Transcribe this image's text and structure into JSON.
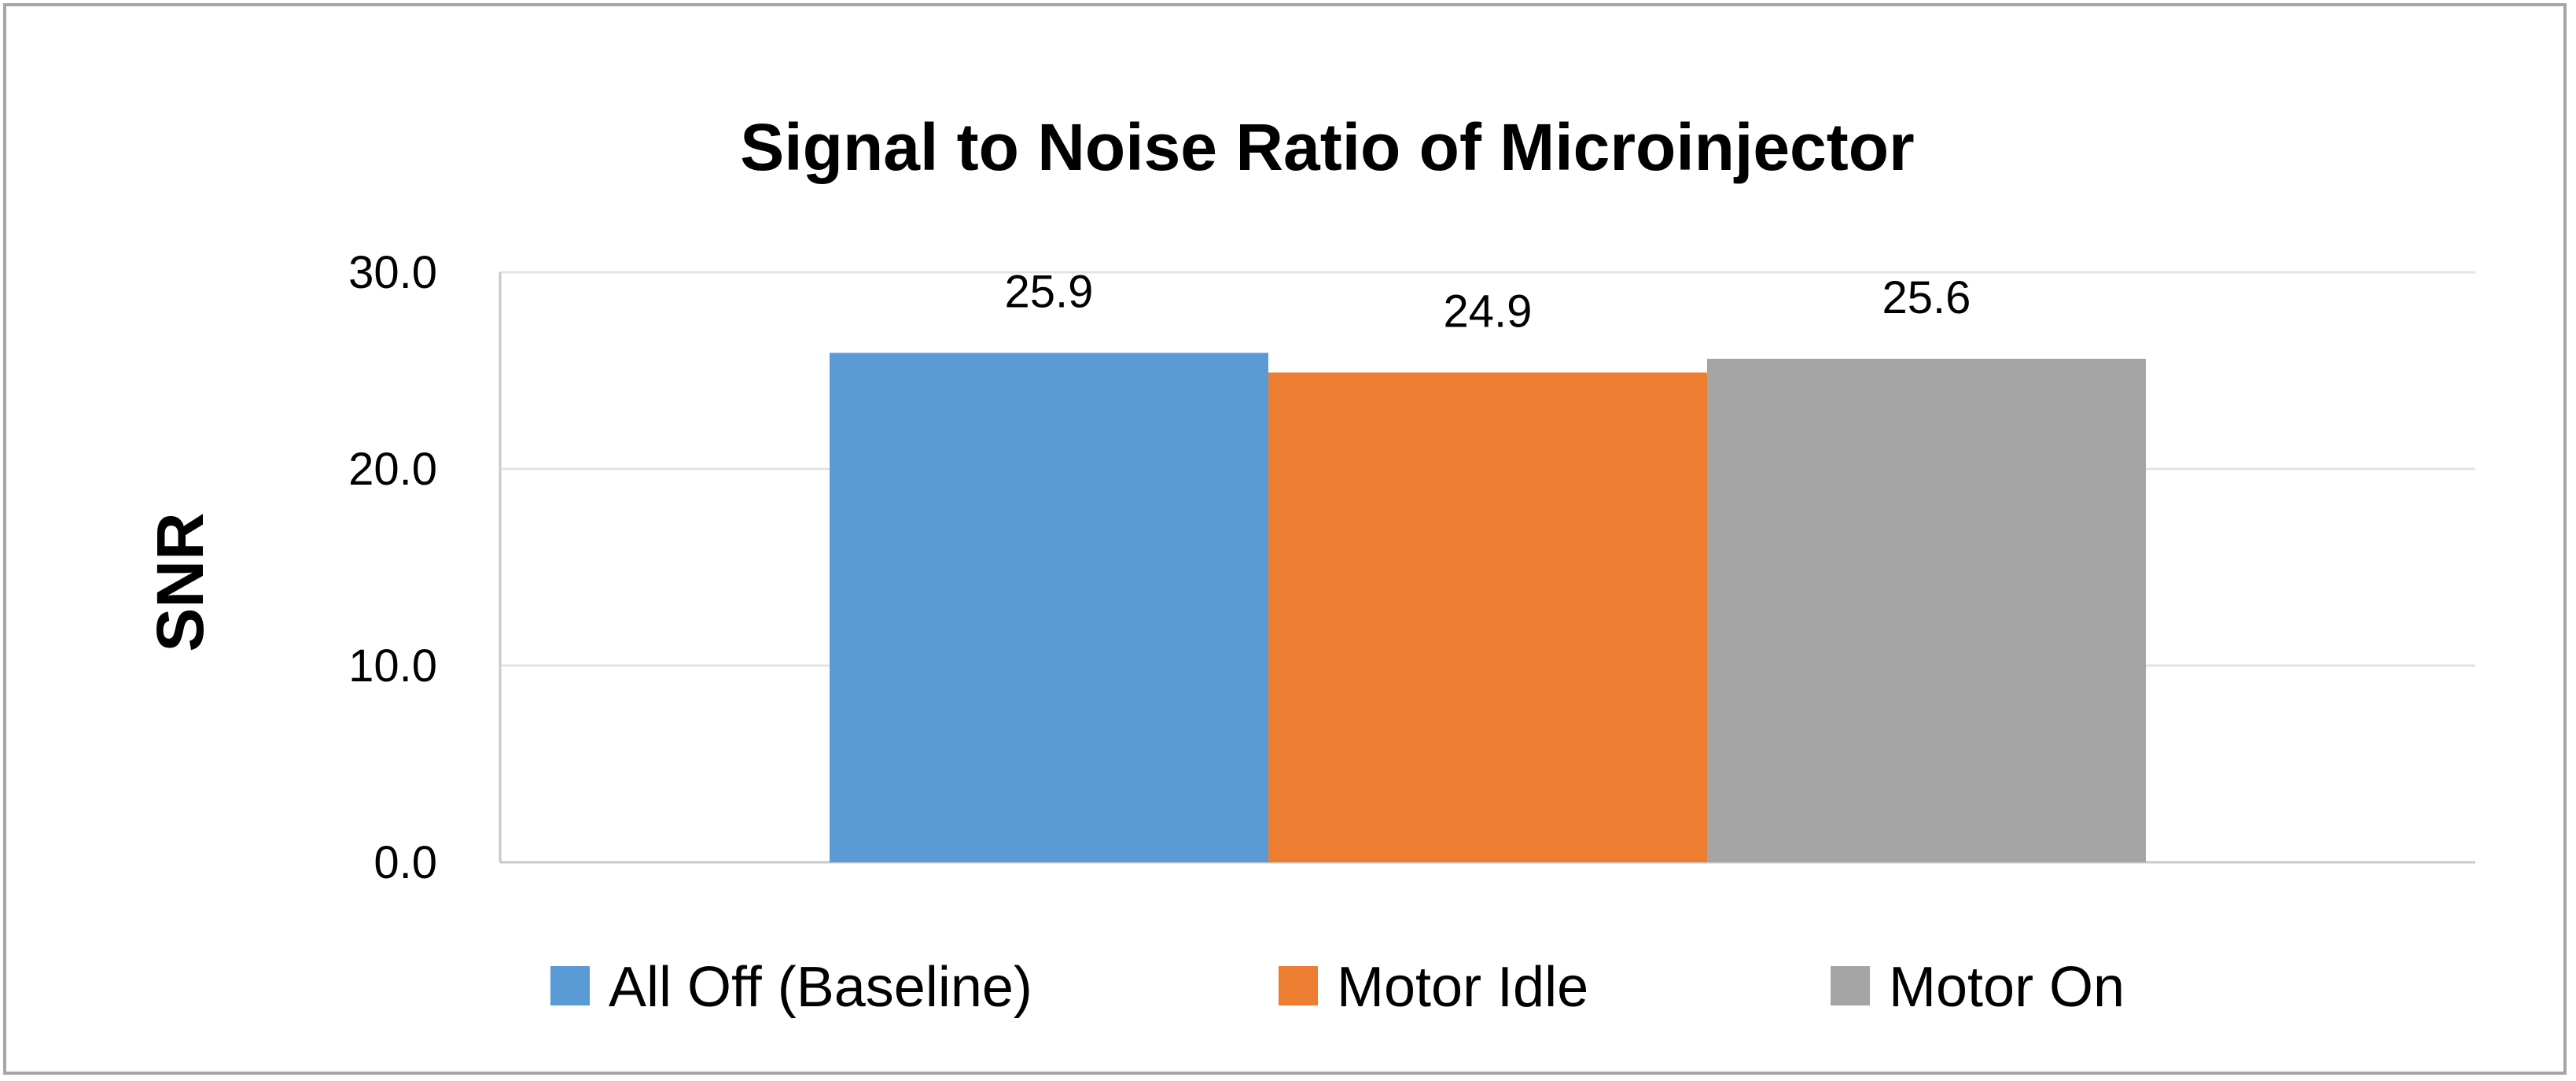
{
  "chart_data": {
    "type": "bar",
    "title": "Signal to Noise Ratio of Microinjector",
    "xlabel": "",
    "ylabel": "SNR",
    "ylim": [
      0,
      30
    ],
    "yticks": [
      "0.0",
      "10.0",
      "20.0",
      "30.0"
    ],
    "grid": true,
    "legend_position": "bottom",
    "series": [
      {
        "name": "All Off (Baseline)",
        "value": 25.9,
        "label": "25.9",
        "color": "#5b9bd5"
      },
      {
        "name": "Motor Idle",
        "value": 24.9,
        "label": "24.9",
        "color": "#ed7d31"
      },
      {
        "name": "Motor On",
        "value": 25.6,
        "label": "25.6",
        "color": "#a5a5a5"
      }
    ]
  }
}
